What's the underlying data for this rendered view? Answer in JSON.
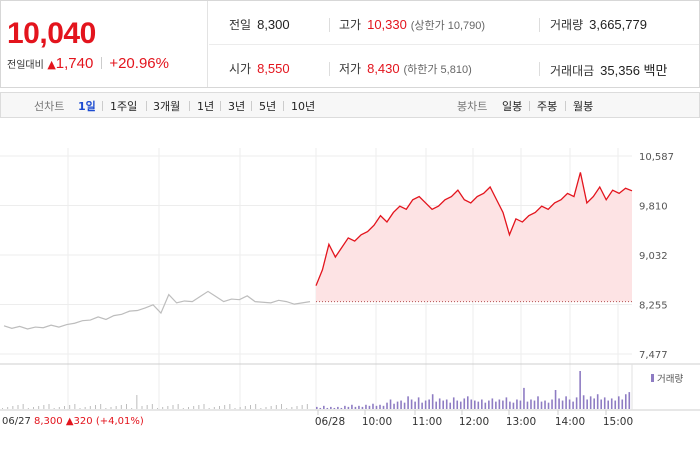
{
  "quote": {
    "price": "10,040",
    "change_label": "전일대비",
    "change_arrow": "▲",
    "change_amount": "1,740",
    "change_pct": "+20.96%",
    "prev_close": {
      "label": "전일",
      "value": "8,300"
    },
    "high": {
      "label": "고가",
      "value": "10,330",
      "sub": "(상한가 10,790)"
    },
    "volume": {
      "label": "거래량",
      "value": "3,665,779"
    },
    "open": {
      "label": "시가",
      "value": "8,550"
    },
    "low": {
      "label": "저가",
      "value": "8,430",
      "sub": "(하한가 5,810)"
    },
    "amount": {
      "label": "거래대금",
      "value": "35,356 백만"
    }
  },
  "tabs": {
    "line_label": "선차트",
    "line": [
      "1일",
      "1주일",
      "3개월",
      "1년",
      "3년",
      "5년",
      "10년"
    ],
    "active": "1일",
    "candle_label": "봉차트",
    "candle": [
      "일봉",
      "주봉",
      "월봉"
    ]
  },
  "footer": {
    "prev_date": "06/27",
    "prev_price": "8,300",
    "prev_arrow": "▲",
    "prev_change": "320 (+4,01%)"
  },
  "colors": {
    "up": "#e3141d",
    "fill": "#fde3e4",
    "prev_line": "#bdbdbd",
    "volume": "#8e7cc3",
    "prev_volume": "#bdbdbd"
  },
  "chart_data": {
    "type": "line",
    "title": "",
    "ylim": [
      7477,
      10587
    ],
    "yticks": [
      "10,587",
      "9,810",
      "9,032",
      "8,255",
      "7,477"
    ],
    "xticks": [
      "06/28",
      "10:00",
      "11:00",
      "12:00",
      "13:00",
      "14:00",
      "15:00"
    ],
    "reference_price": 8300,
    "volume_legend": "거래량",
    "series": [
      {
        "values": [
          7920,
          7880,
          7910,
          7870,
          7900,
          7890,
          7930,
          7900,
          7940,
          7960,
          8000,
          8010,
          8060,
          8020,
          8080,
          8100,
          8150,
          8160,
          8200,
          8250,
          8120,
          8410,
          8280,
          8310,
          8300,
          8380,
          8460,
          8380,
          8300,
          8340,
          8330,
          8390,
          8300,
          8290,
          8280,
          8320,
          8300,
          8260,
          8280,
          8300
        ]
      },
      {
        "values": [
          8550,
          8800,
          9200,
          9000,
          9150,
          9300,
          9250,
          9350,
          9400,
          9500,
          9650,
          9550,
          9700,
          9800,
          9750,
          9900,
          9950,
          9850,
          9750,
          9800,
          9900,
          9950,
          10050,
          9900,
          9850,
          9950,
          10000,
          10100,
          9900,
          9700,
          9350,
          9600,
          9550,
          9650,
          9700,
          9800,
          9750,
          9850,
          9900,
          10000,
          9950,
          10330,
          9850,
          9950,
          10100,
          9900,
          10050,
          10000,
          10080,
          10040
        ]
      }
    ],
    "volume": {
      "values": [
        2,
        1,
        3,
        1,
        2,
        1,
        2,
        1,
        3,
        2,
        4,
        2,
        3,
        2,
        4,
        3,
        5,
        3,
        4,
        3,
        6,
        9,
        5,
        7,
        8,
        6,
        12,
        9,
        7,
        11,
        6,
        8,
        9,
        14,
        7,
        10,
        8,
        9,
        6,
        11,
        8,
        7,
        10,
        12,
        9,
        8,
        7,
        9,
        6,
        8,
        10,
        7,
        9,
        8,
        11,
        7,
        6,
        9,
        8,
        20,
        7,
        9,
        8,
        12,
        7,
        8,
        6,
        9,
        18,
        10,
        8,
        12,
        9,
        7,
        11,
        36,
        13,
        9,
        12,
        10,
        14,
        9,
        11,
        8,
        10,
        8,
        12,
        9,
        14,
        16
      ]
    }
  }
}
